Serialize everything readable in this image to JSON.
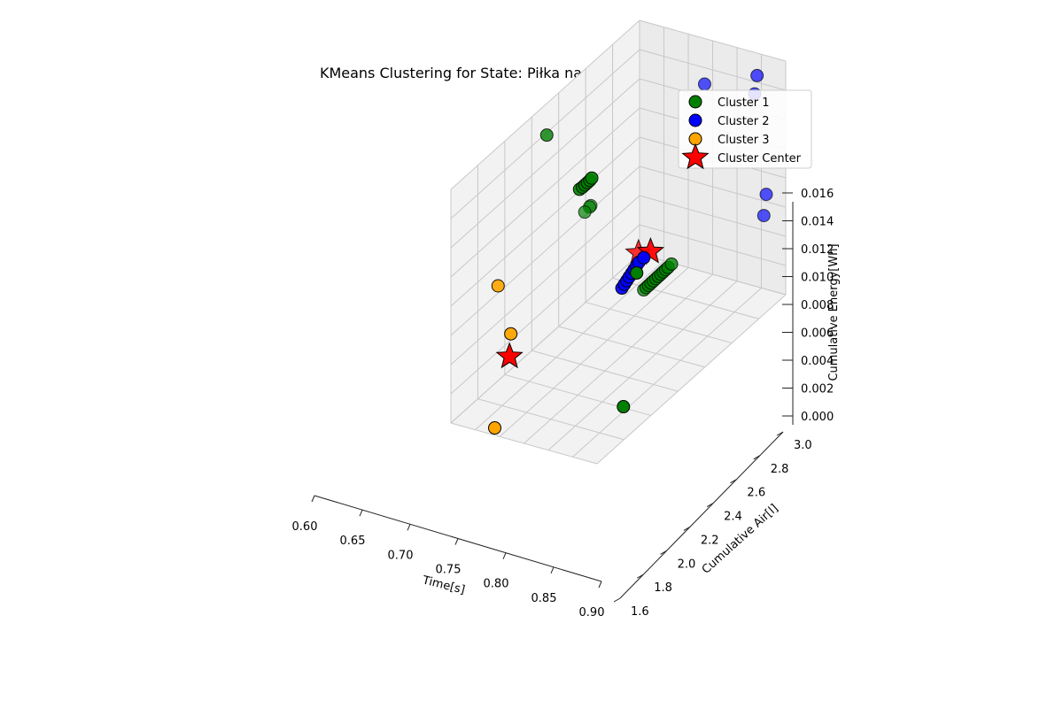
{
  "chart_data": {
    "type": "scatter",
    "projection": "3d",
    "title": "KMeans Clustering for State: Piłka na podnośniku - podniesiona",
    "xlabel": "Time[s]",
    "ylabel": "Cumulative Air[l]",
    "zlabel": "Cumulative Energy[Wh]",
    "xlim": [
      0.6,
      0.9
    ],
    "ylim": [
      1.6,
      3.0
    ],
    "zlim": [
      0.0,
      0.016
    ],
    "x_ticks": [
      "0.60",
      "0.65",
      "0.70",
      "0.75",
      "0.80",
      "0.85",
      "0.90"
    ],
    "y_ticks": [
      "1.6",
      "1.8",
      "2.0",
      "2.2",
      "2.4",
      "2.6",
      "2.8",
      "3.0"
    ],
    "z_ticks": [
      "0.000",
      "0.002",
      "0.004",
      "0.006",
      "0.008",
      "0.010",
      "0.012",
      "0.014",
      "0.016"
    ],
    "grid": true,
    "legend_position": "top-right",
    "series": [
      {
        "name": "Cluster 1",
        "color": "#008000",
        "marker": "circle",
        "points": [
          {
            "x": 0.617,
            "y": 2.25,
            "z": 0.0145
          },
          {
            "x": 0.612,
            "y": 2.55,
            "z": 0.0067
          },
          {
            "x": 0.608,
            "y": 2.6,
            "z": 0.0066
          },
          {
            "x": 0.605,
            "y": 2.62,
            "z": 0.0065
          },
          {
            "x": 0.712,
            "y": 2.15,
            "z": 0.0125
          },
          {
            "x": 0.718,
            "y": 2.15,
            "z": 0.0127
          },
          {
            "x": 0.723,
            "y": 2.15,
            "z": 0.0129
          },
          {
            "x": 0.728,
            "y": 2.15,
            "z": 0.0131
          },
          {
            "x": 0.733,
            "y": 2.15,
            "z": 0.0133
          },
          {
            "x": 0.737,
            "y": 2.15,
            "z": 0.0135
          },
          {
            "x": 0.733,
            "y": 2.55,
            "z": 0.0025
          },
          {
            "x": 0.738,
            "y": 2.55,
            "z": 0.0027
          },
          {
            "x": 0.743,
            "y": 2.55,
            "z": 0.0029
          },
          {
            "x": 0.748,
            "y": 2.55,
            "z": 0.0031
          },
          {
            "x": 0.753,
            "y": 2.55,
            "z": 0.0033
          },
          {
            "x": 0.758,
            "y": 2.55,
            "z": 0.0035
          },
          {
            "x": 0.763,
            "y": 2.55,
            "z": 0.0037
          },
          {
            "x": 0.768,
            "y": 2.55,
            "z": 0.0039
          },
          {
            "x": 0.773,
            "y": 2.55,
            "z": 0.0041
          },
          {
            "x": 0.778,
            "y": 2.55,
            "z": 0.0043
          },
          {
            "x": 0.783,
            "y": 2.55,
            "z": 0.0045
          },
          {
            "x": 0.79,
            "y": 2.55,
            "z": 0.0048
          },
          {
            "x": 0.843,
            "y": 2.1,
            "z": 0.0084
          },
          {
            "x": 0.885,
            "y": 1.85,
            "z": 0.0017
          }
        ]
      },
      {
        "name": "Cluster 2",
        "color": "#0000ff",
        "marker": "circle",
        "points": [
          {
            "x": 0.775,
            "y": 2.85,
            "z": 0.0145
          },
          {
            "x": 0.785,
            "y": 2.2,
            "z": 0.006
          },
          {
            "x": 0.79,
            "y": 2.2,
            "z": 0.0063
          },
          {
            "x": 0.795,
            "y": 2.2,
            "z": 0.0066
          },
          {
            "x": 0.8,
            "y": 2.2,
            "z": 0.0069
          },
          {
            "x": 0.805,
            "y": 2.2,
            "z": 0.0072
          },
          {
            "x": 0.81,
            "y": 2.2,
            "z": 0.0075
          },
          {
            "x": 0.815,
            "y": 2.2,
            "z": 0.0078
          },
          {
            "x": 0.82,
            "y": 2.2,
            "z": 0.0081
          },
          {
            "x": 0.83,
            "y": 2.2,
            "z": 0.0085
          },
          {
            "x": 0.855,
            "y": 2.95,
            "z": 0.015
          },
          {
            "x": 0.85,
            "y": 2.95,
            "z": 0.0137
          },
          {
            "x": 0.86,
            "y": 3.0,
            "z": 0.0065
          },
          {
            "x": 0.855,
            "y": 3.0,
            "z": 0.005
          }
        ]
      },
      {
        "name": "Cluster 3",
        "color": "#ffa500",
        "marker": "circle",
        "points": [
          {
            "x": 0.6,
            "y": 1.95,
            "z": 0.0065
          },
          {
            "x": 0.64,
            "y": 1.9,
            "z": 0.004
          },
          {
            "x": 0.69,
            "y": 1.6,
            "z": 0.0005
          }
        ]
      },
      {
        "name": "Cluster Center",
        "color": "#ff0000",
        "marker": "star",
        "points": [
          {
            "x": 0.75,
            "y": 2.45,
            "z": 0.006
          },
          {
            "x": 0.83,
            "y": 2.25,
            "z": 0.0085
          },
          {
            "x": 0.665,
            "y": 1.8,
            "z": 0.0035
          }
        ]
      }
    ]
  }
}
